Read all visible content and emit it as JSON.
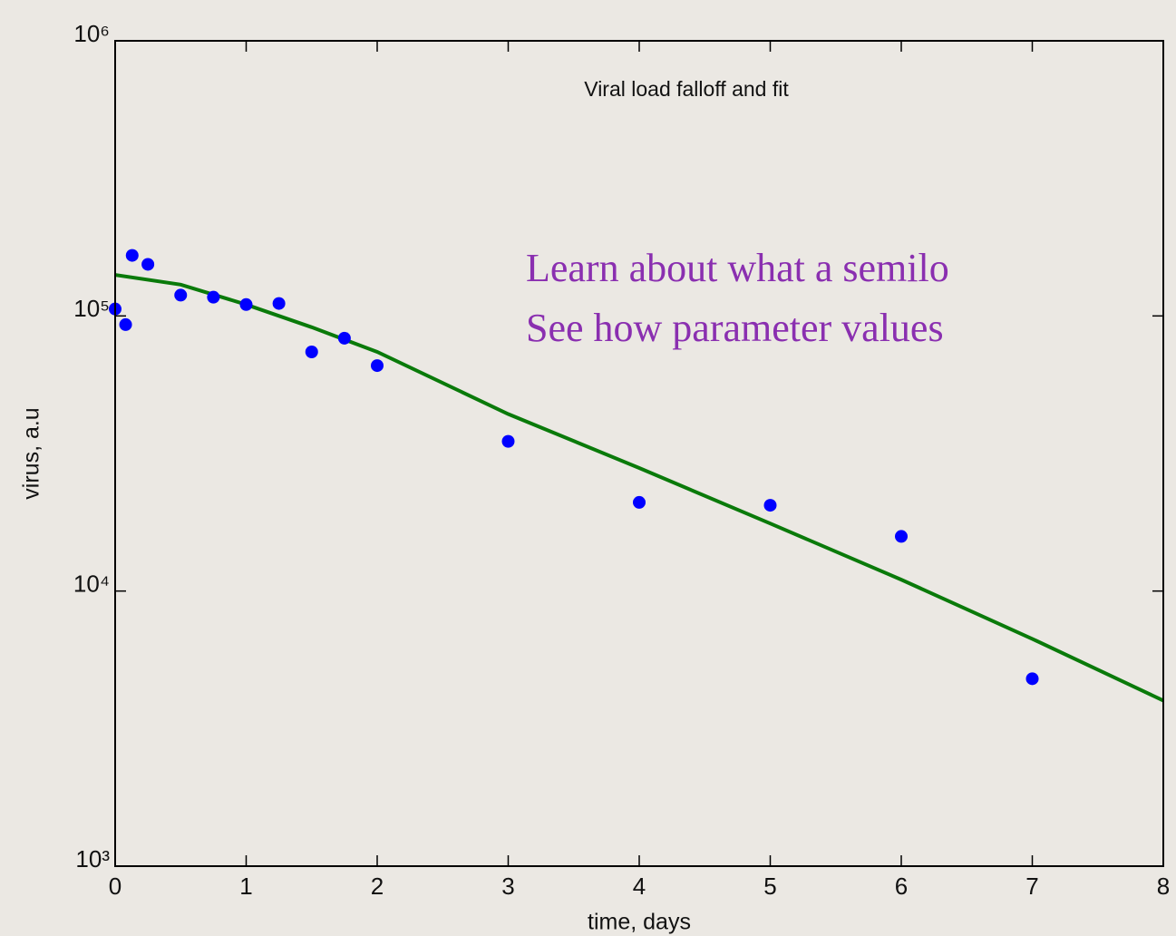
{
  "chart_data": {
    "type": "scatter",
    "title": "Viral load falloff and fit",
    "xlabel": "time, days",
    "ylabel": "virus, a.u",
    "annotations": [
      "Learn about what a semilo",
      "See how parameter values"
    ],
    "log_y": true,
    "xlim": [
      0,
      8
    ],
    "xticks": [
      0,
      1,
      2,
      3,
      4,
      5,
      6,
      7,
      8
    ],
    "ylim": [
      1000,
      1000000
    ],
    "yticks": [
      {
        "value": 1000,
        "label": "10³"
      },
      {
        "value": 10000,
        "label": "10⁴"
      },
      {
        "value": 100000,
        "label": "10⁵"
      },
      {
        "value": 1000000,
        "label": "10⁶"
      }
    ],
    "series": [
      {
        "kind": "points",
        "color": "#0000ff",
        "x": [
          0,
          0.08,
          0.13,
          0.25,
          0.5,
          0.75,
          1,
          1.25,
          1.5,
          1.75,
          2,
          3,
          4,
          5,
          6,
          7
        ],
        "values": [
          106000,
          93000,
          166000,
          154000,
          119000,
          117000,
          110000,
          111000,
          74000,
          83000,
          66000,
          35000,
          21000,
          20500,
          15800,
          4800
        ]
      },
      {
        "kind": "line",
        "color": "#0a7a0a",
        "x": [
          0,
          0.5,
          1,
          1.5,
          2,
          3,
          4,
          5,
          6,
          7,
          8
        ],
        "values": [
          141000,
          130000,
          110000,
          91000,
          74000,
          44000,
          28000,
          17600,
          11000,
          6700,
          4000
        ]
      }
    ]
  }
}
